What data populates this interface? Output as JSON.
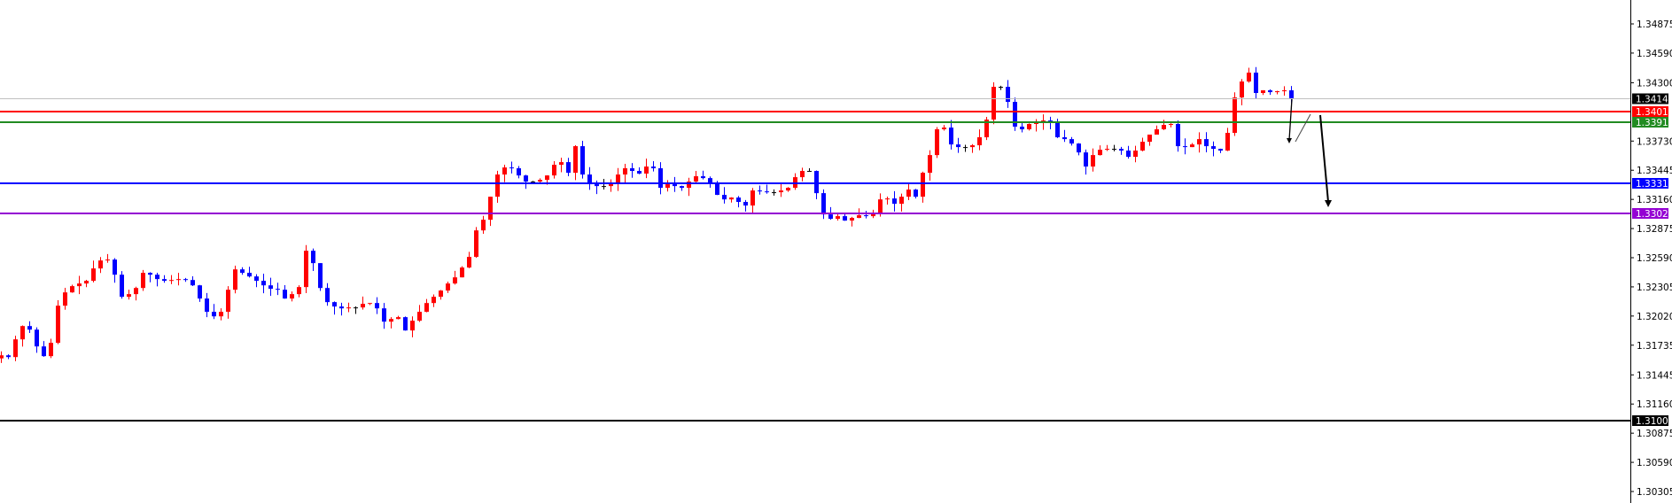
{
  "chart_data": {
    "type": "candlestick",
    "title": "",
    "xlabel": "",
    "ylabel": "",
    "ylim": [
      1.3015,
      1.351
    ],
    "grid": false,
    "legend": "none",
    "colors": {
      "bullish": "#ff0000",
      "bearish": "#0000ff",
      "axis": "#000000"
    },
    "y_ticks": [
      "1.34875",
      "1.34590",
      "1.34300",
      "1.33730",
      "1.33445",
      "1.33160",
      "1.32875",
      "1.32590",
      "1.32305",
      "1.32020",
      "1.31735",
      "1.31445",
      "1.31160",
      "1.30875",
      "1.30590",
      "1.30305"
    ],
    "levels": [
      {
        "price": 1.34149,
        "label": "1.34149",
        "color": "#c0c0c0",
        "label_bg": "#000000",
        "width": 1
      },
      {
        "price": 1.34016,
        "label": "1.34016",
        "color": "#ff0000",
        "label_bg": "#ff0000",
        "width": 2
      },
      {
        "price": 1.33913,
        "label": "1.33913",
        "color": "#228b22",
        "label_bg": "#228b22",
        "width": 2
      },
      {
        "price": 1.33317,
        "label": "1.33317",
        "color": "#0000ff",
        "label_bg": "#0000ff",
        "width": 2
      },
      {
        "price": 1.33023,
        "label": "1.33023",
        "color": "#9400d3",
        "label_bg": "#9400d3",
        "width": 2
      },
      {
        "price": 1.31001,
        "label": "1.31001",
        "color": "#000000",
        "label_bg": "#000000",
        "width": 2
      }
    ],
    "closes": [
      1.31636,
      1.31619,
      1.31792,
      1.31922,
      1.31887,
      1.31723,
      1.31628,
      1.31758,
      1.32121,
      1.32251,
      1.32312,
      1.32338,
      1.32364,
      1.32485,
      1.32563,
      1.32572,
      1.32424,
      1.32208,
      1.32234,
      1.32294,
      1.32442,
      1.32424,
      1.32381,
      1.32364,
      1.32372,
      1.32381,
      1.32372,
      1.3232,
      1.32191,
      1.32061,
      1.32017,
      1.32061,
      1.32277,
      1.32476,
      1.32442,
      1.32407,
      1.32364,
      1.3232,
      1.32286,
      1.32277,
      1.32191,
      1.32234,
      1.32303,
      1.32658,
      1.32537,
      1.32294,
      1.32156,
      1.32113,
      1.32095,
      1.32104,
      1.32104,
      1.32139,
      1.32147,
      1.32095,
      1.31965,
      1.31991,
      1.32009,
      1.31879,
      1.31974,
      1.32061,
      1.32147,
      1.32208,
      1.32269,
      1.32338,
      1.32398,
      1.32494,
      1.32598,
      1.32857,
      1.32961,
      1.33186,
      1.33403,
      1.33472,
      1.33464,
      1.33394,
      1.33334,
      1.33334,
      1.33351,
      1.33394,
      1.33498,
      1.33524,
      1.3342,
      1.3368,
      1.33403,
      1.33308,
      1.3329,
      1.3329,
      1.33316,
      1.33403,
      1.33464,
      1.33438,
      1.33412,
      1.33481,
      1.33464,
      1.33273,
      1.33308,
      1.3329,
      1.33273,
      1.33334,
      1.33386,
      1.33368,
      1.33316,
      1.33204,
      1.3316,
      1.33178,
      1.33135,
      1.331,
      1.33247,
      1.33238,
      1.3323,
      1.3323,
      1.33247,
      1.33273,
      1.33377,
      1.33438,
      1.33438,
      1.33221,
      1.33013,
      1.3297,
      1.32996,
      1.32953,
      1.32979,
      1.33005,
      1.32996,
      1.33031,
      1.3316,
      1.33169,
      1.33117,
      1.33186,
      1.33256,
      1.33186,
      1.3342,
      1.33593,
      1.33845,
      1.33862,
      1.33697,
      1.33671,
      1.33671,
      1.33689,
      1.33767,
      1.3394,
      1.3426,
      1.3426,
      1.34113,
      1.33871,
      1.33845,
      1.33897,
      1.33914,
      1.33931,
      1.33914,
      1.33767,
      1.33749,
      1.33706,
      1.33619,
      1.33481,
      1.33593,
      1.33645,
      1.33654,
      1.33654,
      1.33637,
      1.33576,
      1.33637,
      1.33723,
      1.33793,
      1.33845,
      1.33888,
      1.33897,
      1.3368,
      1.33671,
      1.33697,
      1.33749,
      1.3368,
      1.33654,
      1.33637,
      1.3381,
      1.34156,
      1.34312,
      1.34399,
      1.342,
      1.34226,
      1.34208,
      1.34217,
      1.34226,
      1.34149
    ]
  }
}
